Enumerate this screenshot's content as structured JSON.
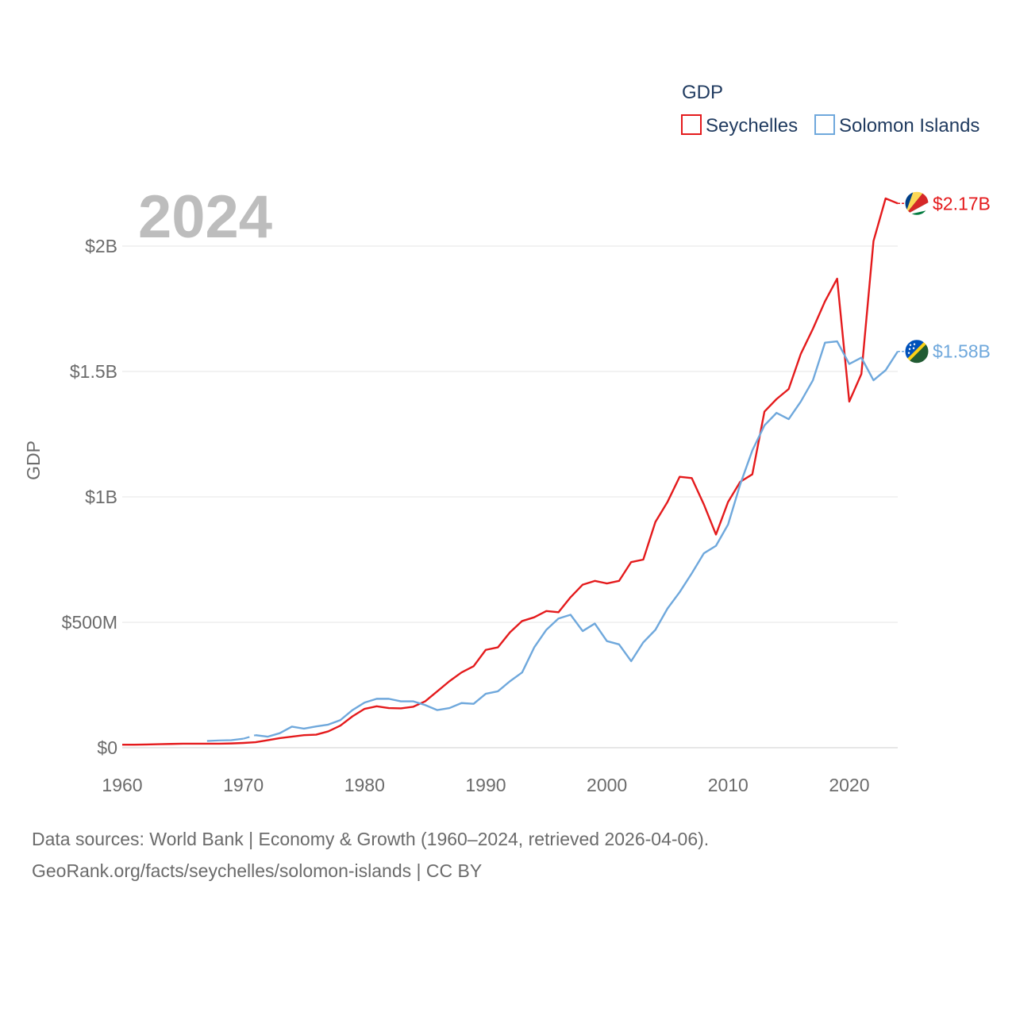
{
  "chart_data": {
    "type": "line",
    "year_label": "2024",
    "ylabel": "GDP",
    "xlim": [
      1960,
      2024
    ],
    "ylim": [
      0,
      2200000000
    ],
    "x_ticks": [
      1960,
      1970,
      1980,
      1990,
      2000,
      2010,
      2020
    ],
    "y_ticks": [
      {
        "value": 0,
        "label": "$0"
      },
      {
        "value": 500000000,
        "label": "$500M"
      },
      {
        "value": 1000000000,
        "label": "$1B"
      },
      {
        "value": 1500000000,
        "label": "$1.5B"
      },
      {
        "value": 2000000000,
        "label": "$2B"
      }
    ],
    "legend": {
      "title": "GDP",
      "position": "top-right"
    },
    "series": [
      {
        "name": "Seychelles",
        "color": "#e41a1c",
        "end_label": "$2.17B",
        "flag_icon": "seychelles-flag-icon",
        "x": [
          1960,
          1961,
          1962,
          1963,
          1964,
          1965,
          1966,
          1967,
          1968,
          1969,
          1970,
          1971,
          1972,
          1973,
          1974,
          1975,
          1976,
          1977,
          1978,
          1979,
          1980,
          1981,
          1982,
          1983,
          1984,
          1985,
          1986,
          1987,
          1988,
          1989,
          1990,
          1991,
          1992,
          1993,
          1994,
          1995,
          1996,
          1997,
          1998,
          1999,
          2000,
          2001,
          2002,
          2003,
          2004,
          2005,
          2006,
          2007,
          2008,
          2009,
          2010,
          2011,
          2012,
          2013,
          2014,
          2015,
          2016,
          2017,
          2018,
          2019,
          2020,
          2021,
          2022,
          2023,
          2024
        ],
        "values": [
          12000000,
          12000000,
          13000000,
          14000000,
          15000000,
          16000000,
          16000000,
          16000000,
          16000000,
          17000000,
          19000000,
          22000000,
          30000000,
          38000000,
          44000000,
          50000000,
          52000000,
          65000000,
          88000000,
          125000000,
          155000000,
          165000000,
          158000000,
          157000000,
          163000000,
          185000000,
          225000000,
          265000000,
          300000000,
          325000000,
          390000000,
          400000000,
          460000000,
          505000000,
          520000000,
          545000000,
          540000000,
          600000000,
          650000000,
          665000000,
          655000000,
          665000000,
          740000000,
          750000000,
          900000000,
          980000000,
          1080000000,
          1075000000,
          970000000,
          850000000,
          980000000,
          1060000000,
          1090000000,
          1340000000,
          1390000000,
          1430000000,
          1570000000,
          1670000000,
          1780000000,
          1870000000,
          1380000000,
          1490000000,
          2020000000,
          2190000000,
          2170000000
        ]
      },
      {
        "name": "Solomon Islands",
        "color": "#6fa8dc",
        "end_label": "$1.58B",
        "flag_icon": "solomon-islands-flag-icon",
        "x": [
          1967,
          1968,
          1969,
          1970,
          1971,
          1972,
          1973,
          1974,
          1975,
          1976,
          1977,
          1978,
          1979,
          1980,
          1981,
          1982,
          1983,
          1984,
          1985,
          1986,
          1987,
          1988,
          1989,
          1990,
          1991,
          1992,
          1993,
          1994,
          1995,
          1996,
          1997,
          1998,
          1999,
          2000,
          2001,
          2002,
          2003,
          2004,
          2005,
          2006,
          2007,
          2008,
          2009,
          2010,
          2011,
          2012,
          2013,
          2014,
          2015,
          2016,
          2017,
          2018,
          2019,
          2020,
          2021,
          2022,
          2023,
          2024
        ],
        "values": [
          27000000,
          29000000,
          30000000,
          36000000,
          50000000,
          44000000,
          58000000,
          84000000,
          76000000,
          85000000,
          92000000,
          110000000,
          150000000,
          180000000,
          195000000,
          195000000,
          185000000,
          185000000,
          170000000,
          150000000,
          158000000,
          178000000,
          175000000,
          215000000,
          225000000,
          265000000,
          300000000,
          400000000,
          470000000,
          515000000,
          530000000,
          465000000,
          495000000,
          425000000,
          412000000,
          345000000,
          420000000,
          470000000,
          555000000,
          620000000,
          695000000,
          775000000,
          805000000,
          890000000,
          1050000000,
          1185000000,
          1285000000,
          1335000000,
          1310000000,
          1380000000,
          1465000000,
          1615000000,
          1620000000,
          1530000000,
          1555000000,
          1465000000,
          1505000000,
          1580000000
        ],
        "gap_before_year": 1971
      }
    ]
  },
  "footer": {
    "line1": "Data sources: World Bank | Economy & Growth (1960–2024, retrieved 2026-04-06).",
    "line2": "GeoRank.org/facts/seychelles/solomon-islands | CC BY"
  }
}
